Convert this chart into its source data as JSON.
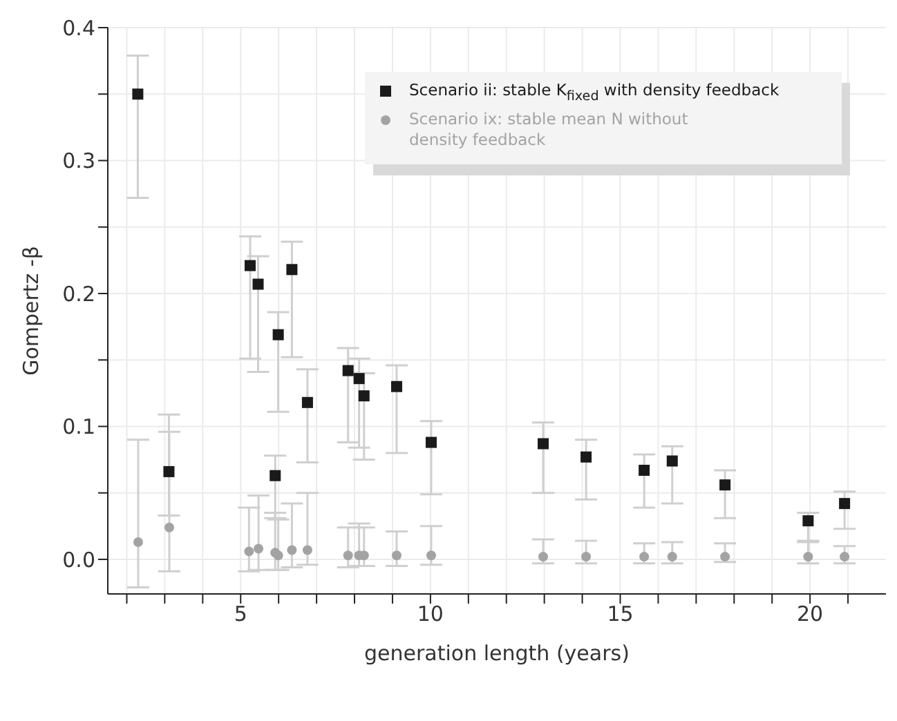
{
  "chart_data": {
    "type": "scatter",
    "xlabel": "generation length (years)",
    "ylabel": "Gompertz -β",
    "xlim": [
      1.5,
      22
    ],
    "ylim": [
      -0.026,
      0.4
    ],
    "xticks": [
      {
        "value": 2,
        "label": null
      },
      {
        "value": 3,
        "label": null
      },
      {
        "value": 4,
        "label": null
      },
      5,
      {
        "value": 6,
        "label": null
      },
      {
        "value": 7,
        "label": null
      },
      {
        "value": 8,
        "label": null
      },
      {
        "value": 9,
        "label": null
      },
      10,
      {
        "value": 11,
        "label": null
      },
      {
        "value": 12,
        "label": null
      },
      {
        "value": 13,
        "label": null
      },
      {
        "value": 14,
        "label": null
      },
      15,
      {
        "value": 16,
        "label": null
      },
      {
        "value": 17,
        "label": null
      },
      {
        "value": 18,
        "label": null
      },
      {
        "value": 19,
        "label": null
      },
      20,
      {
        "value": 21,
        "label": null
      }
    ],
    "yticks": [
      {
        "value": 0,
        "label": "0.0"
      },
      {
        "value": 0.05,
        "label": null
      },
      {
        "value": 0.1,
        "label": "0.1"
      },
      {
        "value": 0.15,
        "label": null
      },
      {
        "value": 0.2,
        "label": "0.2"
      },
      {
        "value": 0.25,
        "label": null
      },
      {
        "value": 0.3,
        "label": "0.3"
      },
      {
        "value": 0.35,
        "label": null
      },
      {
        "value": 0.4,
        "label": "0.4"
      }
    ],
    "grid": true,
    "legend": "top right",
    "series": [
      {
        "name": "Scenario ii: stable K$_{fixed}$ with density feedback",
        "color": "#1a1a1a",
        "marker": "square",
        "x": [
          2.29,
          3.11,
          5.25,
          5.46,
          5.99,
          6.35,
          5.91,
          6.76,
          7.83,
          8.12,
          8.25,
          9.11,
          10.02,
          12.97,
          14.1,
          15.63,
          16.37,
          17.76,
          19.95,
          20.91
        ],
        "values": [
          0.35,
          0.066,
          0.221,
          0.207,
          0.169,
          0.218,
          0.063,
          0.118,
          0.142,
          0.136,
          0.123,
          0.13,
          0.088,
          0.087,
          0.077,
          0.067,
          0.074,
          0.056,
          0.029,
          0.042
        ],
        "errors": [
          [
            0.272,
            0.379
          ],
          [
            0.033,
            0.109
          ],
          [
            0.151,
            0.243
          ],
          [
            0.141,
            0.228
          ],
          [
            0.111,
            0.186
          ],
          [
            0.152,
            0.239
          ],
          [
            0.031,
            0.078
          ],
          [
            0.073,
            0.143
          ],
          [
            0.088,
            0.159
          ],
          [
            0.084,
            0.151
          ],
          [
            0.075,
            0.14
          ],
          [
            0.08,
            0.146
          ],
          [
            0.049,
            0.104
          ],
          [
            0.05,
            0.103
          ],
          [
            0.045,
            0.09
          ],
          [
            0.039,
            0.079
          ],
          [
            0.042,
            0.085
          ],
          [
            0.031,
            0.067
          ],
          [
            0.013,
            0.035
          ],
          [
            0.023,
            0.051
          ]
        ]
      },
      {
        "name": "Scenario ix: stable mean N without density feedback",
        "color": "#a3a3a3",
        "marker": "circle",
        "x": [
          2.3,
          3.12,
          5.22,
          5.47,
          5.91,
          5.99,
          6.35,
          6.76,
          7.83,
          8.12,
          8.25,
          9.11,
          10.02,
          12.97,
          14.1,
          15.63,
          16.37,
          17.76,
          19.95,
          20.91
        ],
        "values": [
          0.013,
          0.024,
          0.006,
          0.008,
          0.005,
          0.003,
          0.007,
          0.007,
          0.003,
          0.003,
          0.003,
          0.003,
          0.003,
          0.002,
          0.002,
          0.002,
          0.002,
          0.002,
          0.002,
          0.002
        ],
        "errors": [
          [
            -0.021,
            0.09
          ],
          [
            -0.009,
            0.096
          ],
          [
            -0.009,
            0.039
          ],
          [
            -0.008,
            0.048
          ],
          [
            -0.008,
            0.035
          ],
          [
            -0.008,
            0.03
          ],
          [
            -0.006,
            0.042
          ],
          [
            -0.004,
            0.05
          ],
          [
            -0.006,
            0.024
          ],
          [
            -0.005,
            0.027
          ],
          [
            -0.005,
            0.024
          ],
          [
            -0.005,
            0.021
          ],
          [
            -0.004,
            0.025
          ],
          [
            -0.003,
            0.015
          ],
          [
            -0.003,
            0.014
          ],
          [
            -0.003,
            0.012
          ],
          [
            -0.003,
            0.013
          ],
          [
            -0.002,
            0.012
          ],
          [
            -0.003,
            0.014
          ],
          [
            -0.003,
            0.01
          ]
        ]
      }
    ]
  }
}
